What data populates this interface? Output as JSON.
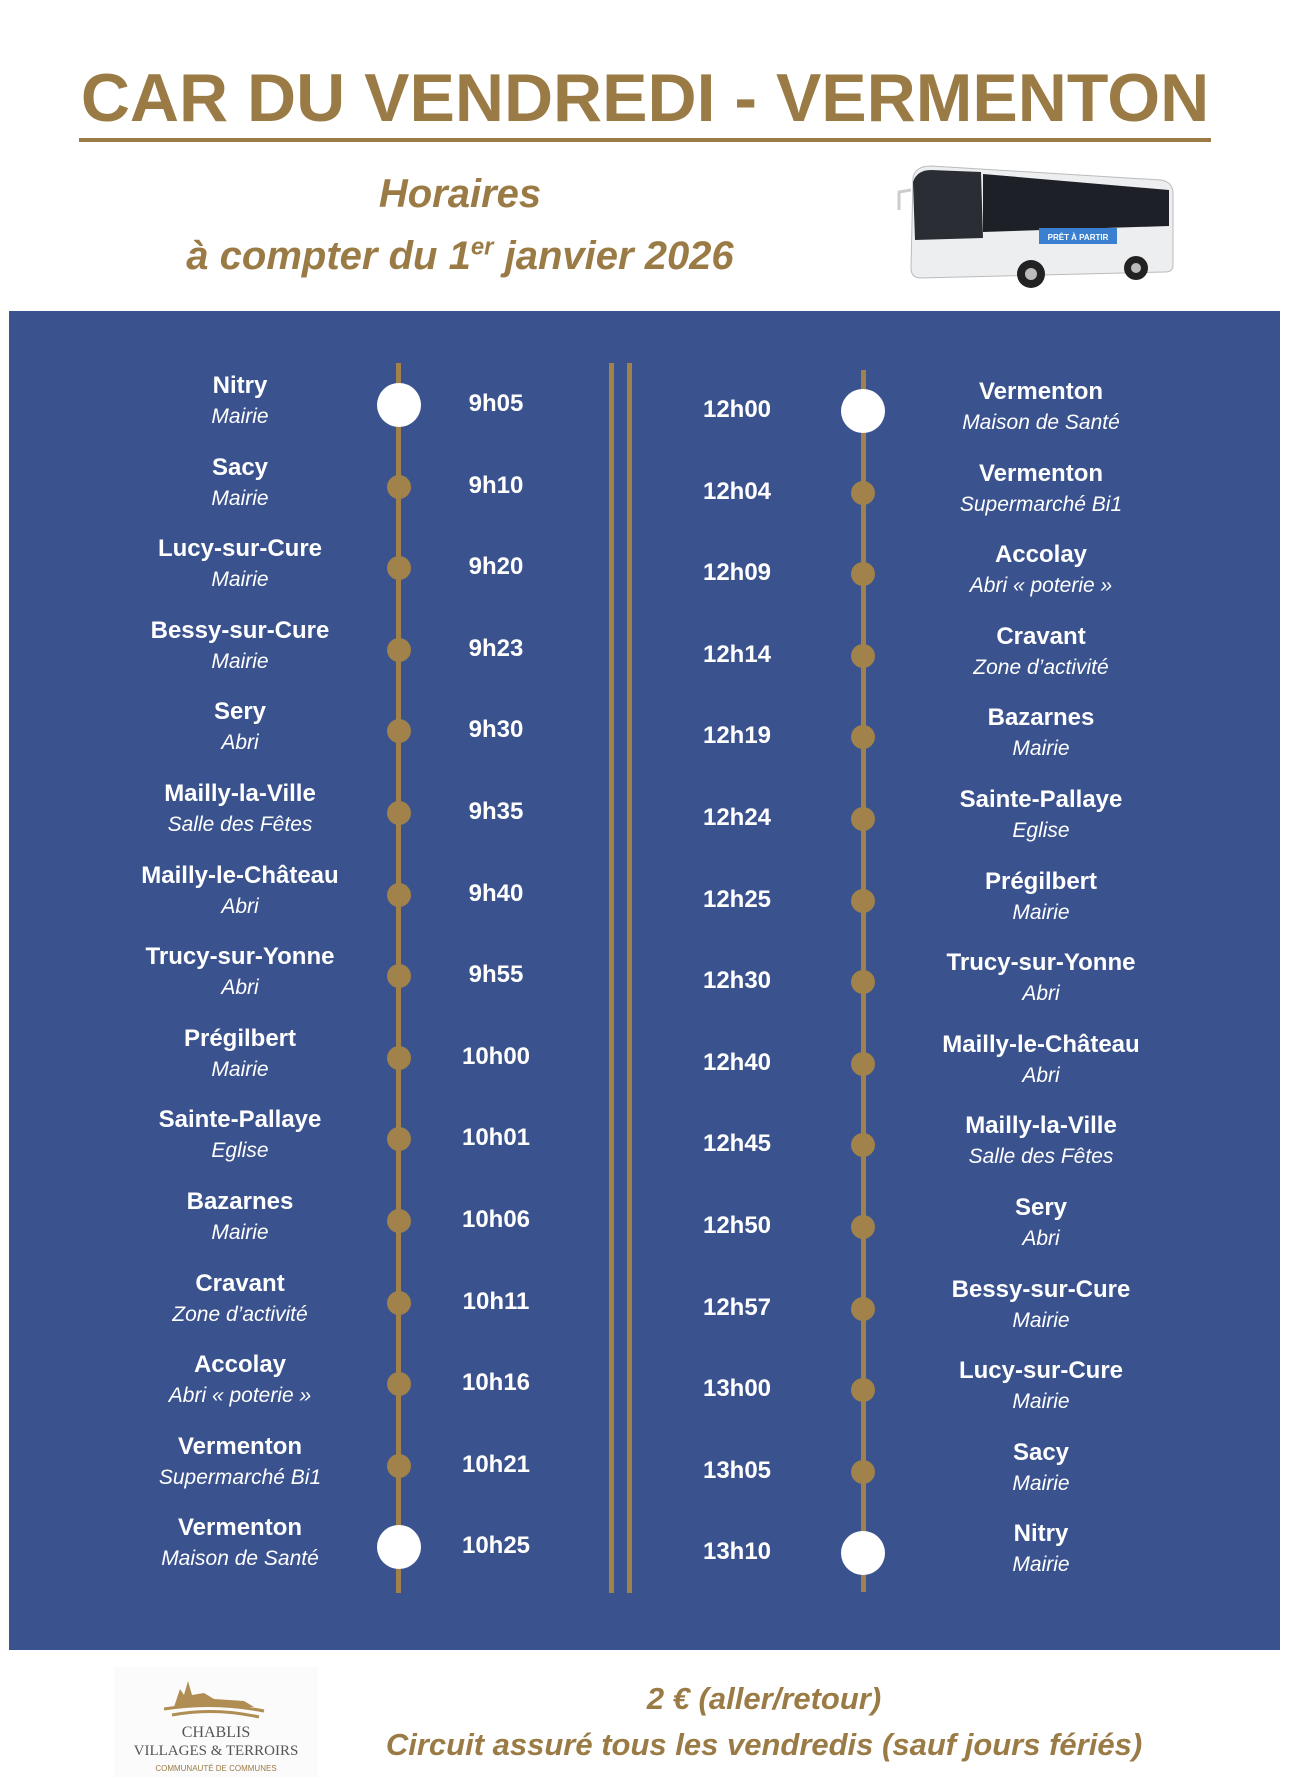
{
  "header": {
    "title": "CAR DU VENDREDI - VERMENTON",
    "subtitle_line1": "Horaires",
    "subtitle_line2_pre": "à compter du 1",
    "subtitle_line2_sup": "er",
    "subtitle_line2_post": " janvier 2026",
    "bus_sign": "PRÊT À PARTIR"
  },
  "colors": {
    "gold": "#9a7b45",
    "panel": "#3a528e",
    "dot": "#a0824a"
  },
  "outbound": [
    {
      "name": "Nitry",
      "stop": "Mairie",
      "time": "9h05",
      "terminus": true
    },
    {
      "name": "Sacy",
      "stop": "Mairie",
      "time": "9h10"
    },
    {
      "name": "Lucy-sur-Cure",
      "stop": "Mairie",
      "time": "9h20"
    },
    {
      "name": "Bessy-sur-Cure",
      "stop": "Mairie",
      "time": "9h23"
    },
    {
      "name": "Sery",
      "stop": "Abri",
      "time": "9h30"
    },
    {
      "name": "Mailly-la-Ville",
      "stop": "Salle des Fêtes",
      "time": "9h35"
    },
    {
      "name": "Mailly-le-Château",
      "stop": "Abri",
      "time": "9h40"
    },
    {
      "name": "Trucy-sur-Yonne",
      "stop": "Abri",
      "time": "9h55"
    },
    {
      "name": "Prégilbert",
      "stop": "Mairie",
      "time": "10h00"
    },
    {
      "name": "Sainte-Pallaye",
      "stop": "Eglise",
      "time": "10h01"
    },
    {
      "name": "Bazarnes",
      "stop": "Mairie",
      "time": "10h06"
    },
    {
      "name": "Cravant",
      "stop": "Zone d’activité",
      "time": "10h11"
    },
    {
      "name": "Accolay",
      "stop": "Abri « poterie »",
      "time": "10h16"
    },
    {
      "name": "Vermenton",
      "stop": "Supermarché Bi1",
      "time": "10h21"
    },
    {
      "name": "Vermenton",
      "stop": "Maison de Santé",
      "time": "10h25",
      "terminus": true
    }
  ],
  "return": [
    {
      "name": "Vermenton",
      "stop": "Maison de Santé",
      "time": "12h00",
      "terminus": true
    },
    {
      "name": "Vermenton",
      "stop": "Supermarché Bi1",
      "time": "12h04"
    },
    {
      "name": "Accolay",
      "stop": "Abri « poterie »",
      "time": "12h09"
    },
    {
      "name": "Cravant",
      "stop": "Zone d’activité",
      "time": "12h14"
    },
    {
      "name": "Bazarnes",
      "stop": "Mairie",
      "time": "12h19"
    },
    {
      "name": "Sainte-Pallaye",
      "stop": "Eglise",
      "time": "12h24"
    },
    {
      "name": "Prégilbert",
      "stop": "Mairie",
      "time": "12h25"
    },
    {
      "name": "Trucy-sur-Yonne",
      "stop": "Abri",
      "time": "12h30"
    },
    {
      "name": "Mailly-le-Château",
      "stop": "Abri",
      "time": "12h40"
    },
    {
      "name": "Mailly-la-Ville",
      "stop": "Salle des Fêtes",
      "time": "12h45"
    },
    {
      "name": "Sery",
      "stop": "Abri",
      "time": "12h50"
    },
    {
      "name": "Bessy-sur-Cure",
      "stop": "Mairie",
      "time": "12h57"
    },
    {
      "name": "Lucy-sur-Cure",
      "stop": "Mairie",
      "time": "13h00"
    },
    {
      "name": "Sacy",
      "stop": "Mairie",
      "time": "13h05"
    },
    {
      "name": "Nitry",
      "stop": "Mairie",
      "time": "13h10",
      "terminus": true
    }
  ],
  "footer": {
    "price": "2 € (aller/retour)",
    "note": "Circuit assuré tous les vendredis (sauf jours fériés)",
    "logo_line1": "CHABLIS",
    "logo_line2": "VILLAGES & TERROIRS",
    "logo_line3": "COMMUNAUTÉ DE COMMUNES"
  }
}
